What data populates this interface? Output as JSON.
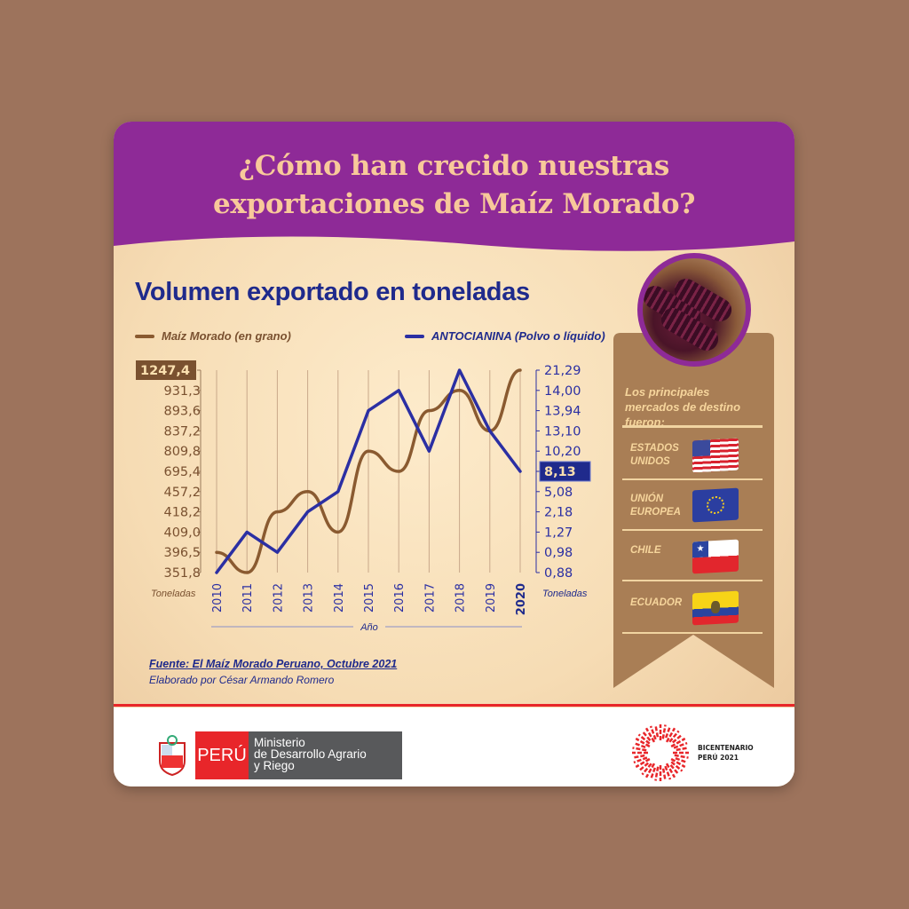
{
  "header": {
    "title_line1": "¿Cómo han crecido nuestras",
    "title_line2": "exportaciones de Maíz Morado?"
  },
  "subtitle": "Volumen exportado en toneladas",
  "chart_data": {
    "type": "line",
    "title": "Volumen exportado en toneladas",
    "x": [
      2010,
      2011,
      2012,
      2013,
      2014,
      2015,
      2016,
      2017,
      2018,
      2019,
      2020
    ],
    "xlabel": "Año",
    "ylabel_left": "Toneladas",
    "ylabel_right": "Toneladas",
    "left_ticks": [
      "1247,4",
      "931,3",
      "893,6",
      "837,2",
      "809,8",
      "695,4",
      "457,2",
      "418,2",
      "409,0",
      "396,5",
      "351,8"
    ],
    "right_ticks": [
      "21,29",
      "14,00",
      "13,94",
      "13,10",
      "10,20",
      "8,13",
      "5,08",
      "2,18",
      "1,27",
      "0,98",
      "0,88"
    ],
    "y_scale": "ordinal (ticks at each data value)",
    "grid": "vertical",
    "legend": "top",
    "series": [
      {
        "name": "Maíz Morado (en grano)",
        "axis": "left",
        "color": "#8a5a30",
        "values": [
          396.5,
          351.8,
          418.2,
          457.2,
          409.0,
          809.8,
          695.4,
          893.6,
          931.3,
          837.2,
          1247.4
        ]
      },
      {
        "name": "ANTOCIANINA (Polvo o líquido)",
        "axis": "right",
        "color": "#2b2fa3",
        "values": [
          0.88,
          1.27,
          0.98,
          2.18,
          5.08,
          13.94,
          14.0,
          10.2,
          21.29,
          13.1,
          8.13
        ]
      }
    ],
    "highlight_left": "1247,4",
    "highlight_right": "8,13"
  },
  "source": {
    "line1": "Fuente: El Maíz Morado Peruano, Octubre 2021",
    "line2": "Elaborado por César Armando Romero"
  },
  "markets": {
    "heading": "Los principales mercados de destino fueron:",
    "items": [
      {
        "label1": "ESTADOS",
        "label2": "UNIDOS",
        "flag": "usa-flag"
      },
      {
        "label1": "UNIÓN",
        "label2": "EUROPEA",
        "flag": "eu-flag"
      },
      {
        "label1": "CHILE",
        "label2": "",
        "flag": "chile-flag"
      },
      {
        "label1": "ECUADOR",
        "label2": "",
        "flag": "ecuador-flag"
      }
    ]
  },
  "footer": {
    "peru": "PERÚ",
    "ministry1": "Ministerio",
    "ministry2": "de Desarrollo Agrario",
    "ministry3": "y Riego",
    "bicent1": "BICENTENARIO",
    "bicent2": "PERÚ 2021"
  },
  "colors": {
    "purple": "#8e2a97",
    "title": "#f8c99a",
    "navy": "#1f2a8c",
    "brown": "#8a5a30",
    "blue": "#2b2fa3",
    "ribbon": "#a97e55",
    "red": "#e8262a"
  }
}
